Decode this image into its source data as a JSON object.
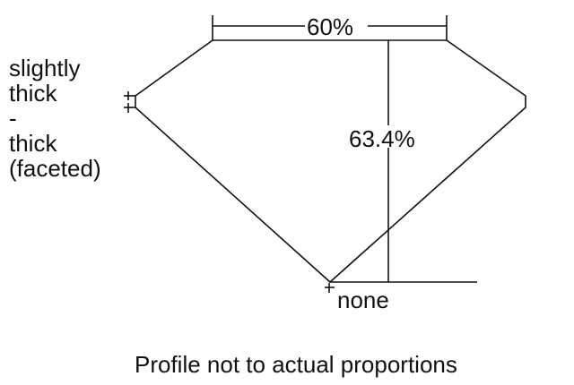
{
  "girdle_label_lines": [
    "slightly",
    "thick",
    "-",
    "thick",
    "(faceted)"
  ],
  "table_label": "60%",
  "depth_label": "63.4%",
  "culet_label": "none",
  "caption": "Profile not to actual proportions"
}
